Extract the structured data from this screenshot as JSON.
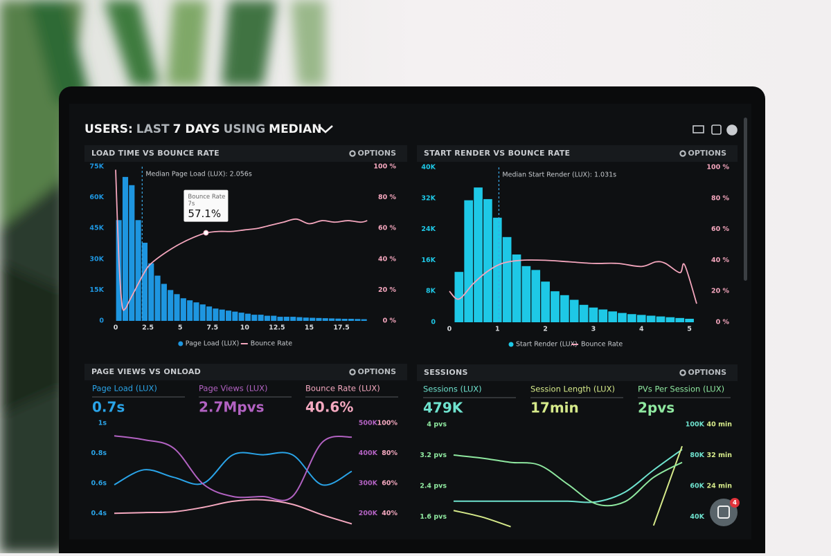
{
  "header": {
    "title_parts": [
      "USERS:",
      "LAST",
      "7 DAYS",
      "USING",
      "MEDIAN"
    ]
  },
  "chat_badge": 4,
  "chart_data": [
    {
      "type": "histogram",
      "title": "LOAD TIME VS BOUNCE RATE",
      "options": "OPTIONS",
      "bins": [
        0,
        0.5,
        1,
        1.5,
        2,
        2.5,
        3,
        3.5,
        4,
        4.5,
        5,
        5.5,
        6,
        6.5,
        7,
        7.5,
        8,
        8.5,
        9,
        9.5,
        10,
        10.5,
        11,
        11.5,
        12,
        12.5,
        13,
        13.5,
        14,
        14.5,
        15,
        15.5,
        16,
        16.5,
        17,
        17.5,
        18,
        18.5,
        19,
        19.5
      ],
      "series": [
        {
          "name": "Page Load (LUX)",
          "color": "#1e96e0",
          "values": [
            49000,
            70000,
            66000,
            49000,
            38000,
            28000,
            22000,
            18000,
            15000,
            13000,
            11000,
            10000,
            9000,
            8000,
            7000,
            6000,
            5500,
            5000,
            4500,
            4000,
            3500,
            3000,
            3000,
            2500,
            2500,
            2000,
            2000,
            2000,
            1800,
            1600,
            1500,
            1400,
            1300,
            1200,
            1100,
            1000,
            1000,
            900,
            800
          ]
        },
        {
          "name": "Bounce Rate",
          "color": "#f4a6bd",
          "axis": "y2",
          "x": [
            0,
            0.25,
            0.5,
            0.75,
            1,
            1.5,
            2,
            2.5,
            3,
            4,
            5,
            6,
            7,
            8,
            9,
            10,
            11,
            12,
            13,
            14,
            15,
            16,
            17,
            18,
            19,
            19.5
          ],
          "values": [
            98,
            40,
            10,
            8,
            12,
            20,
            28,
            35,
            39,
            45,
            50,
            54,
            57,
            58,
            58,
            59,
            60,
            62,
            64,
            66,
            63,
            65,
            64,
            65,
            64,
            65
          ]
        }
      ],
      "xlim": [
        -0.5,
        19.8
      ],
      "xticks": [
        0,
        2.5,
        5,
        7.5,
        10,
        12.5,
        15,
        17.5
      ],
      "ylim": [
        0,
        75000
      ],
      "yticks": [
        0,
        {
          "value": 15000,
          "label": "15K"
        },
        {
          "value": 30000,
          "label": "30K"
        },
        {
          "value": 45000,
          "label": "45K"
        },
        {
          "value": 60000,
          "label": "60K"
        },
        {
          "value": 75000,
          "label": "75K"
        }
      ],
      "y2lim": [
        0,
        100
      ],
      "y2ticks": [
        {
          "value": 0,
          "label": "0 %"
        },
        {
          "value": 20,
          "label": "20 %"
        },
        {
          "value": 40,
          "label": "40 %"
        },
        {
          "value": 60,
          "label": "60 %"
        },
        {
          "value": 80,
          "label": "80 %"
        },
        {
          "value": 100,
          "label": "100 %"
        }
      ],
      "annotations": [
        {
          "x": 2.056,
          "text": "Median Page Load (LUX): 2.056s"
        }
      ],
      "tooltip": {
        "title": "Bounce Rate",
        "x": 7,
        "x_label": "7s",
        "value": 57.1,
        "value_label": "57.1%"
      }
    },
    {
      "type": "histogram",
      "title": "START RENDER VS BOUNCE RATE",
      "options": "OPTIONS",
      "bins": [
        0.1,
        0.3,
        0.5,
        0.7,
        0.9,
        1.1,
        1.3,
        1.5,
        1.7,
        1.9,
        2.1,
        2.3,
        2.5,
        2.7,
        2.9,
        3.1,
        3.3,
        3.5,
        3.7,
        3.9,
        4.1,
        4.3,
        4.5,
        4.7,
        4.9,
        5.1
      ],
      "series": [
        {
          "name": "Start Render (LUX)",
          "color": "#1ec8e6",
          "values": [
            13000,
            31500,
            34800,
            31800,
            27000,
            22000,
            17500,
            14500,
            13500,
            10500,
            8000,
            7000,
            5800,
            4500,
            3800,
            3300,
            2800,
            2400,
            2100,
            1900,
            1700,
            1500,
            1300,
            1100,
            900
          ]
        },
        {
          "name": "Bounce Rate",
          "color": "#f4a6bd",
          "axis": "y2",
          "x": [
            0,
            0.2,
            0.5,
            0.8,
            1.1,
            1.5,
            2,
            2.5,
            3,
            3.5,
            4,
            4.3,
            4.5,
            4.8,
            4.9,
            5.15
          ],
          "values": [
            20,
            15,
            25,
            33,
            38,
            40,
            40,
            39,
            38,
            38,
            36,
            39,
            38,
            32,
            37,
            12
          ]
        }
      ],
      "xlim": [
        -0.1,
        5.15
      ],
      "xticks": [
        0,
        1,
        2,
        3,
        4,
        5
      ],
      "ylim": [
        0,
        40000
      ],
      "yticks": [
        0,
        {
          "value": 8000,
          "label": "8K"
        },
        {
          "value": 16000,
          "label": "16K"
        },
        {
          "value": 24000,
          "label": "24K"
        },
        {
          "value": 32000,
          "label": "32K"
        },
        {
          "value": 40000,
          "label": "40K"
        }
      ],
      "y2lim": [
        0,
        100
      ],
      "y2ticks": [
        {
          "value": 0,
          "label": "0 %"
        },
        {
          "value": 20,
          "label": "20 %"
        },
        {
          "value": 40,
          "label": "40 %"
        },
        {
          "value": 60,
          "label": "60 %"
        },
        {
          "value": 80,
          "label": "80 %"
        },
        {
          "value": 100,
          "label": "100 %"
        }
      ],
      "annotations": [
        {
          "x": 1.031,
          "text": "Median Start Render (LUX): 1.031s"
        }
      ]
    },
    {
      "type": "line",
      "title": "PAGE VIEWS VS ONLOAD",
      "options": "OPTIONS",
      "series": [
        {
          "name": "Page Load (LUX)",
          "kpi": "0.7s",
          "color": "#2aa4e8",
          "axis": "y",
          "values": [
            0.59,
            0.69,
            0.64,
            0.6,
            0.79,
            0.79,
            0.79,
            0.59,
            0.68
          ]
        },
        {
          "name": "Page Views (LUX)",
          "kpi": "2.7Mpvs",
          "color": "#b262c2",
          "axis": "y2",
          "values": [
            458000,
            445000,
            417000,
            297000,
            256000,
            256000,
            256000,
            436000,
            454000
          ]
        },
        {
          "name": "Bounce Rate (LUX)",
          "kpi": "40.6%",
          "color": "#f5a9c0",
          "axis": "y3",
          "values": [
            40,
            40.5,
            41,
            44,
            48,
            49,
            46,
            39,
            33
          ]
        }
      ],
      "ylim": [
        0.3,
        1
      ],
      "yticks": [
        {
          "value": 1,
          "label": "1s"
        },
        {
          "value": 0.8,
          "label": "0.8s"
        },
        {
          "value": 0.6,
          "label": "0.6s"
        },
        {
          "value": 0.4,
          "label": "0.4s"
        }
      ],
      "y2lim": [
        150000,
        500000
      ],
      "y2ticks": [
        {
          "value": 500000,
          "label": "500K"
        },
        {
          "value": 400000,
          "label": "400K"
        },
        {
          "value": 300000,
          "label": "300K"
        },
        {
          "value": 200000,
          "label": "200K"
        }
      ],
      "y3lim": [
        30,
        100
      ],
      "y3ticks": [
        {
          "value": 100,
          "label": "100%"
        },
        {
          "value": 80,
          "label": "80%"
        },
        {
          "value": 60,
          "label": "60%"
        },
        {
          "value": 40,
          "label": "40%"
        }
      ]
    },
    {
      "type": "line",
      "title": "SESSIONS",
      "options": "OPTIONS",
      "series": [
        {
          "name": "Sessions (LUX)",
          "kpi": "479K",
          "color": "#6fe3cf",
          "axis": "y2",
          "values": [
            50300,
            50300,
            50300,
            50300,
            50300,
            49900,
            56200,
            70500,
            83900
          ]
        },
        {
          "name": "Session Length (LUX)",
          "kpi": "17min",
          "color": "#d6ea8a",
          "axis": "y3",
          "values": [
            17.7,
            16,
            13.5,
            null,
            null,
            null,
            null,
            13.8,
            34.4
          ]
        },
        {
          "name": "PVs Per Session (LUX)",
          "kpi": "2pvs",
          "color": "#8fe8a0",
          "axis": "y",
          "values": [
            3.21,
            3.13,
            3.02,
            2.95,
            2.45,
            1.94,
            2,
            2.63,
            3.02
          ]
        }
      ],
      "ylim": [
        1.2,
        4
      ],
      "yticks": [
        {
          "value": 4,
          "label": "4 pvs"
        },
        {
          "value": 3.2,
          "label": "3.2 pvs"
        },
        {
          "value": 2.4,
          "label": "2.4 pvs"
        },
        {
          "value": 1.6,
          "label": "1.6 pvs"
        }
      ],
      "y2lim": [
        30000,
        100000
      ],
      "y2ticks": [
        {
          "value": 100000,
          "label": "100K"
        },
        {
          "value": 80000,
          "label": "80K"
        },
        {
          "value": 60000,
          "label": "60K"
        },
        {
          "value": 40000,
          "label": "40K"
        }
      ],
      "y3lim": [
        12,
        40
      ],
      "y3ticks": [
        {
          "value": 40,
          "label": "40 min"
        },
        {
          "value": 32,
          "label": "32 min"
        },
        {
          "value": 24,
          "label": "24 min"
        }
      ]
    }
  ]
}
